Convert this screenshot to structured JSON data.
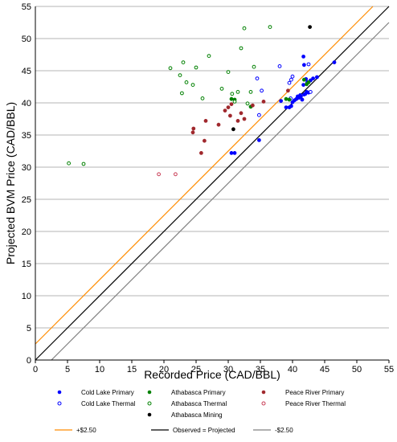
{
  "chart_data": {
    "type": "scatter",
    "title": "",
    "xlabel": "Recorded Price (CAD/BBL)",
    "ylabel": "Projected BVM Price (CAD/BBL)",
    "xlim": [
      0,
      55
    ],
    "ylim": [
      0,
      55
    ],
    "x_ticks": [
      "0",
      "5",
      "10",
      "15",
      "20",
      "25",
      "30",
      "35",
      "40",
      "45",
      "50",
      "55"
    ],
    "y_ticks": [
      "0",
      "5",
      "10",
      "15",
      "20",
      "25",
      "30",
      "35",
      "40",
      "45",
      "50",
      "55"
    ],
    "grid": "horizontal",
    "legend_position": "bottom",
    "series": [
      {
        "name": "Cold Lake Primary",
        "color": "#0000ff",
        "marker": "filled-circle",
        "points": [
          [
            30.5,
            32.2
          ],
          [
            31,
            32.2
          ],
          [
            34.8,
            34.2
          ],
          [
            38.2,
            40.3
          ],
          [
            39,
            39.3
          ],
          [
            39.5,
            39.3
          ],
          [
            39.8,
            39.5
          ],
          [
            40,
            40.1
          ],
          [
            40.3,
            40.4
          ],
          [
            40.6,
            40.6
          ],
          [
            41,
            40.8
          ],
          [
            41.3,
            41
          ],
          [
            41.5,
            40.5
          ],
          [
            41.8,
            41.3
          ],
          [
            42,
            41.4
          ],
          [
            42.2,
            41.7
          ],
          [
            42.5,
            41.6
          ],
          [
            41.7,
            42.8
          ],
          [
            42.3,
            43.2
          ],
          [
            42.8,
            43.5
          ],
          [
            43.2,
            43.8
          ],
          [
            43.8,
            44
          ],
          [
            41.8,
            45.9
          ],
          [
            41.7,
            47.2
          ],
          [
            46.5,
            46.3
          ],
          [
            42.1,
            43.7
          ],
          [
            41.2,
            41.2
          ],
          [
            40.8,
            41
          ]
        ]
      },
      {
        "name": "Cold Lake Thermal",
        "color": "#0000ff",
        "marker": "open-circle",
        "points": [
          [
            34.8,
            38.1
          ],
          [
            35.2,
            41.9
          ],
          [
            34.5,
            43.8
          ],
          [
            38,
            45.7
          ],
          [
            39.5,
            43.1
          ],
          [
            39.8,
            43.6
          ],
          [
            40,
            44.1
          ],
          [
            42.5,
            46
          ],
          [
            42.8,
            41.7
          ],
          [
            42.3,
            43.1
          ],
          [
            39.7,
            40.7
          ]
        ]
      },
      {
        "name": "Athabasca Primary",
        "color": "#008000",
        "marker": "filled-circle",
        "points": [
          [
            30.5,
            40.6
          ],
          [
            31,
            40.5
          ],
          [
            33.5,
            39.4
          ],
          [
            39,
            40.6
          ],
          [
            39.5,
            40.5
          ],
          [
            41.8,
            43.6
          ],
          [
            42.2,
            42.9
          ],
          [
            42.5,
            43.2
          ]
        ]
      },
      {
        "name": "Athabasca Thermal",
        "color": "#008000",
        "marker": "open-circle",
        "points": [
          [
            5.2,
            30.6
          ],
          [
            7.5,
            30.5
          ],
          [
            21,
            45.4
          ],
          [
            22.5,
            44.3
          ],
          [
            23,
            46.3
          ],
          [
            23.5,
            43.2
          ],
          [
            22.8,
            41.5
          ],
          [
            24.5,
            42.8
          ],
          [
            25,
            45.5
          ],
          [
            26,
            40.7
          ],
          [
            27,
            47.3
          ],
          [
            29,
            42.2
          ],
          [
            30,
            44.8
          ],
          [
            30.6,
            41.4
          ],
          [
            31,
            40.2
          ],
          [
            31.5,
            41.7
          ],
          [
            32,
            48.5
          ],
          [
            32.5,
            51.6
          ],
          [
            33.5,
            41.7
          ],
          [
            34,
            45.6
          ],
          [
            36.5,
            51.8
          ],
          [
            33,
            39.9
          ]
        ]
      },
      {
        "name": "Peace River Primary",
        "color": "#a0282d",
        "marker": "filled-circle",
        "points": [
          [
            24.5,
            35.4
          ],
          [
            24.6,
            36
          ],
          [
            25.8,
            32.2
          ],
          [
            26.5,
            37.2
          ],
          [
            26.3,
            34.1
          ],
          [
            28.5,
            36.6
          ],
          [
            29.5,
            38.8
          ],
          [
            30,
            39.3
          ],
          [
            30.3,
            38
          ],
          [
            30.5,
            39.8
          ],
          [
            31.5,
            37.2
          ],
          [
            32,
            38.4
          ],
          [
            32.5,
            37.5
          ],
          [
            33.8,
            39.6
          ],
          [
            35.5,
            40.2
          ],
          [
            39.3,
            41.9
          ]
        ]
      },
      {
        "name": "Peace River Thermal",
        "color": "#c83c55",
        "marker": "open-circle",
        "points": [
          [
            19.2,
            28.9
          ],
          [
            21.8,
            28.9
          ]
        ]
      },
      {
        "name": "Athabasca Mining",
        "color": "#000000",
        "marker": "filled-circle",
        "points": [
          [
            30.8,
            35.9
          ],
          [
            42.7,
            51.8
          ]
        ]
      }
    ],
    "reference_lines": [
      {
        "name": "+$2.50",
        "color": "#ff8c00",
        "offset": 2.5
      },
      {
        "name": "Observed = Projected",
        "color": "#000000",
        "offset": 0
      },
      {
        "name": "-$2.50",
        "color": "#808080",
        "offset": -2.5
      }
    ]
  }
}
